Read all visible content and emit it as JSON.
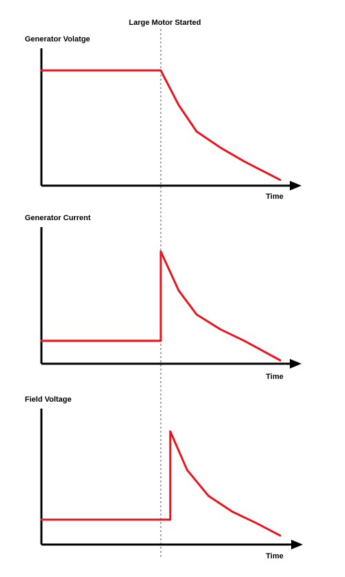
{
  "event_label": "Large Motor Started",
  "chart_data": [
    {
      "type": "line",
      "title": "Generator Volatge",
      "xlabel": "Time",
      "ylabel": "",
      "series": [
        {
          "x": [
            0,
            1,
            1.15,
            1.3,
            1.5,
            1.7,
            2.0
          ],
          "y": [
            1.0,
            1.0,
            0.7,
            0.47,
            0.33,
            0.21,
            0.05
          ]
        }
      ]
    },
    {
      "type": "line",
      "title": "Generator Current",
      "xlabel": "Time",
      "ylabel": "",
      "series": [
        {
          "x": [
            0,
            1,
            1,
            1.15,
            1.3,
            1.5,
            1.7,
            2.0
          ],
          "y": [
            0.2,
            0.2,
            0.98,
            0.64,
            0.43,
            0.3,
            0.2,
            0.03
          ]
        }
      ]
    },
    {
      "type": "line",
      "title": "Field Voltage",
      "xlabel": "Time",
      "ylabel": "",
      "series": [
        {
          "x": [
            0,
            1.08,
            1.08,
            1.22,
            1.4,
            1.6,
            1.8,
            2.0
          ],
          "y": [
            0.22,
            0.22,
            1.0,
            0.66,
            0.43,
            0.29,
            0.19,
            0.08
          ]
        }
      ]
    }
  ],
  "colors": {
    "curve": "#e8151f",
    "axis": "#000000",
    "event_line": "#555555"
  }
}
